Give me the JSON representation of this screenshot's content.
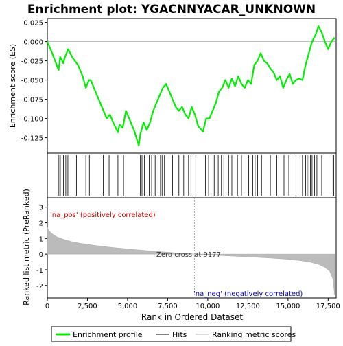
{
  "chart_data": {
    "type": "line",
    "title": "Enrichment plot: YGACNNYACAR_UNKNOWN",
    "top_panel": {
      "ylabel": "Enrichment score (ES)",
      "ylim": [
        -0.145,
        0.03
      ],
      "yticks": [
        0.025,
        0.0,
        -0.025,
        -0.05,
        -0.075,
        -0.1,
        -0.125
      ],
      "ytick_labels": [
        "0.025",
        "0.000",
        "-0.025",
        "-0.050",
        "-0.075",
        "-0.100",
        "-0.125"
      ],
      "series": [
        {
          "name": "Enrichment profile",
          "color": "#00ee00",
          "x": [
            0,
            300,
            700,
            800,
            1000,
            1100,
            1300,
            1600,
            1900,
            2200,
            2400,
            2600,
            2700,
            3000,
            3300,
            3500,
            3700,
            3900,
            4100,
            4400,
            4500,
            4700,
            4900,
            5100,
            5400,
            5700,
            5800,
            6000,
            6200,
            6400,
            6600,
            6800,
            7000,
            7200,
            7400,
            7600,
            7800,
            8000,
            8200,
            8400,
            8600,
            8800,
            9000,
            9200,
            9400,
            9700,
            9900,
            10100,
            10300,
            10500,
            10700,
            10900,
            11100,
            11300,
            11500,
            11700,
            11900,
            12100,
            12300,
            12500,
            12700,
            12900,
            13100,
            13300,
            13500,
            13700,
            13900,
            14100,
            14300,
            14500,
            14700,
            14900,
            15100,
            15300,
            15500,
            15700,
            15900,
            16100,
            16300,
            16500,
            16700,
            16900,
            17100,
            17300,
            17500,
            17700,
            17900
          ],
          "y": [
            0.0,
            -0.015,
            -0.037,
            -0.02,
            -0.028,
            -0.02,
            -0.01,
            -0.022,
            -0.03,
            -0.045,
            -0.06,
            -0.05,
            -0.05,
            -0.065,
            -0.08,
            -0.09,
            -0.1,
            -0.095,
            -0.105,
            -0.118,
            -0.108,
            -0.112,
            -0.09,
            -0.1,
            -0.115,
            -0.135,
            -0.12,
            -0.105,
            -0.115,
            -0.105,
            -0.09,
            -0.08,
            -0.07,
            -0.06,
            -0.055,
            -0.065,
            -0.075,
            -0.085,
            -0.09,
            -0.085,
            -0.095,
            -0.1,
            -0.085,
            -0.095,
            -0.11,
            -0.117,
            -0.1,
            -0.1,
            -0.09,
            -0.08,
            -0.065,
            -0.06,
            -0.05,
            -0.06,
            -0.048,
            -0.058,
            -0.045,
            -0.055,
            -0.06,
            -0.05,
            -0.055,
            -0.03,
            -0.025,
            -0.015,
            -0.025,
            -0.028,
            -0.035,
            -0.04,
            -0.05,
            -0.045,
            -0.06,
            -0.05,
            -0.042,
            -0.055,
            -0.05,
            -0.048,
            -0.05,
            -0.03,
            -0.015,
            0.0,
            0.008,
            0.02,
            0.012,
            0.0,
            -0.01,
            0.0,
            0.005
          ]
        }
      ]
    },
    "legend": {
      "placement": "bottom",
      "entries": [
        {
          "label": "Enrichment profile",
          "color": "#00ee00",
          "style": "thick-line"
        },
        {
          "label": "Hits",
          "color": "#000000",
          "style": "thin-line"
        },
        {
          "label": "Ranking metric scores",
          "color": "#bbbbbb",
          "style": "thin-line"
        }
      ]
    },
    "hits_panel": {
      "hit_positions": [
        720,
        810,
        1000,
        1150,
        1280,
        1820,
        2400,
        2620,
        3480,
        3850,
        4400,
        4600,
        4750,
        4900,
        5800,
        5900,
        6050,
        6350,
        6500,
        6650,
        6720,
        6900,
        7050,
        7150,
        7300,
        7800,
        8200,
        8500,
        8800,
        8950,
        9250,
        9850,
        10050,
        10200,
        10400,
        10650,
        10850,
        11000,
        11300,
        11500,
        11850,
        12100,
        12550,
        12800,
        12950,
        13100,
        13350,
        13900,
        14300,
        14750,
        15050,
        15500,
        15750,
        15900,
        16100,
        16200,
        16300,
        16400,
        16500,
        16650,
        16800,
        17100,
        17800,
        17850
      ]
    },
    "metric_panel": {
      "ylabel": "Ranked list metric (PreRanked)",
      "ylim": [
        -2.8,
        3.6
      ],
      "yticks": [
        3,
        2,
        1,
        0,
        -1,
        -2
      ],
      "ytick_labels": [
        "3",
        "2",
        "1",
        "0",
        "-1",
        "-2"
      ],
      "zero_cross": 9177,
      "zero_cross_label": "Zero cross at 9177",
      "pos_label": "'na_pos' (positively correlated)",
      "neg_label": "'na_neg' (negatively correlated)",
      "xlabel": "Rank in Ordered Dataset",
      "xlim": [
        0,
        18000
      ],
      "xticks": [
        0,
        2500,
        5000,
        7500,
        10000,
        12500,
        15000,
        17500
      ],
      "xtick_labels": [
        "0",
        "2,500",
        "5,000",
        "7,500",
        "10,000",
        "12,500",
        "15,000",
        "17,500"
      ],
      "n_genes": 17900,
      "metric_curve": {
        "x": [
          0,
          100,
          300,
          600,
          1000,
          1500,
          2000,
          3000,
          4000,
          5000,
          6000,
          7000,
          8000,
          9177,
          10000,
          11000,
          12000,
          13000,
          14000,
          15000,
          15800,
          16400,
          16900,
          17300,
          17600,
          17800,
          17900
        ],
        "y": [
          1.7,
          1.5,
          1.3,
          1.1,
          0.95,
          0.8,
          0.7,
          0.55,
          0.43,
          0.33,
          0.24,
          0.16,
          0.08,
          0.0,
          -0.05,
          -0.1,
          -0.15,
          -0.2,
          -0.26,
          -0.33,
          -0.42,
          -0.52,
          -0.65,
          -0.85,
          -1.1,
          -1.6,
          -2.6
        ]
      }
    }
  }
}
